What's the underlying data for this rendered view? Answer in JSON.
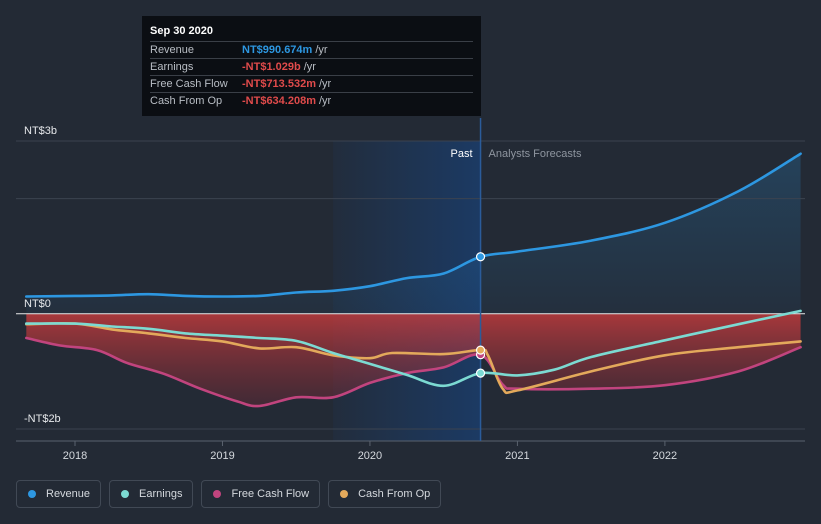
{
  "colors": {
    "revenue": "#2d97e1",
    "earnings": "#7cdad2",
    "fcf": "#c1447e",
    "cfo": "#e3a95b",
    "negative": "#e04b4b",
    "background": "#232a35"
  },
  "tooltip": {
    "date": "Sep 30 2020",
    "rows": [
      {
        "label": "Revenue",
        "value": "NT$990.674m",
        "unit": "/yr",
        "color": "#2d97e1"
      },
      {
        "label": "Earnings",
        "value": "-NT$1.029b",
        "unit": "/yr",
        "color": "#e04b4b"
      },
      {
        "label": "Free Cash Flow",
        "value": "-NT$713.532m",
        "unit": "/yr",
        "color": "#e04b4b"
      },
      {
        "label": "Cash From Op",
        "value": "-NT$634.208m",
        "unit": "/yr",
        "color": "#e04b4b"
      }
    ]
  },
  "legend": [
    {
      "label": "Revenue",
      "color": "#2d97e1"
    },
    {
      "label": "Earnings",
      "color": "#7cdad2"
    },
    {
      "label": "Free Cash Flow",
      "color": "#c1447e"
    },
    {
      "label": "Cash From Op",
      "color": "#e3a95b"
    }
  ],
  "chart_data": {
    "type": "line",
    "title": "",
    "xlabel": "",
    "ylabel": "",
    "ylim": [
      -2,
      3
    ],
    "xlim": [
      2017.6,
      2022.95
    ],
    "y_ticks": [
      {
        "value": 3,
        "label": "NT$3b"
      },
      {
        "value": 0,
        "label": "NT$0"
      },
      {
        "value": -2,
        "label": "-NT$2b"
      }
    ],
    "x_ticks": [
      {
        "value": 2018,
        "label": "2018"
      },
      {
        "value": 2019,
        "label": "2019"
      },
      {
        "value": 2020,
        "label": "2020"
      },
      {
        "value": 2021,
        "label": "2021"
      },
      {
        "value": 2022,
        "label": "2022"
      }
    ],
    "past_label": "Past",
    "forecast_label": "Analysts Forecasts",
    "divider_x": 2020.75,
    "past_band_start": 2019.75,
    "series": [
      {
        "name": "Revenue",
        "key": "revenue",
        "points": [
          [
            2017.67,
            0.3
          ],
          [
            2018.0,
            0.31
          ],
          [
            2018.25,
            0.32
          ],
          [
            2018.5,
            0.34
          ],
          [
            2018.75,
            0.31
          ],
          [
            2019.0,
            0.3
          ],
          [
            2019.25,
            0.31
          ],
          [
            2019.5,
            0.37
          ],
          [
            2019.75,
            0.4
          ],
          [
            2020.0,
            0.48
          ],
          [
            2020.25,
            0.62
          ],
          [
            2020.5,
            0.7
          ],
          [
            2020.75,
            0.99
          ],
          [
            2021.0,
            1.08
          ],
          [
            2021.5,
            1.27
          ],
          [
            2022.0,
            1.58
          ],
          [
            2022.5,
            2.13
          ],
          [
            2022.92,
            2.78
          ]
        ]
      },
      {
        "name": "Earnings",
        "key": "earnings",
        "points": [
          [
            2017.67,
            -0.17
          ],
          [
            2018.0,
            -0.17
          ],
          [
            2018.25,
            -0.22
          ],
          [
            2018.5,
            -0.26
          ],
          [
            2018.75,
            -0.34
          ],
          [
            2019.0,
            -0.38
          ],
          [
            2019.25,
            -0.42
          ],
          [
            2019.5,
            -0.47
          ],
          [
            2019.75,
            -0.68
          ],
          [
            2020.0,
            -0.87
          ],
          [
            2020.25,
            -1.06
          ],
          [
            2020.5,
            -1.25
          ],
          [
            2020.75,
            -1.03
          ],
          [
            2021.0,
            -1.07
          ],
          [
            2021.25,
            -0.97
          ],
          [
            2021.5,
            -0.75
          ],
          [
            2022.0,
            -0.46
          ],
          [
            2022.5,
            -0.18
          ],
          [
            2022.92,
            0.05
          ]
        ]
      },
      {
        "name": "Free Cash Flow",
        "key": "fcf",
        "points": [
          [
            2017.67,
            -0.42
          ],
          [
            2017.9,
            -0.55
          ],
          [
            2018.15,
            -0.63
          ],
          [
            2018.35,
            -0.85
          ],
          [
            2018.6,
            -1.04
          ],
          [
            2018.85,
            -1.3
          ],
          [
            2019.1,
            -1.52
          ],
          [
            2019.25,
            -1.6
          ],
          [
            2019.5,
            -1.45
          ],
          [
            2019.75,
            -1.45
          ],
          [
            2020.0,
            -1.2
          ],
          [
            2020.25,
            -1.03
          ],
          [
            2020.5,
            -0.93
          ],
          [
            2020.75,
            -0.71
          ],
          [
            2020.9,
            -1.23
          ],
          [
            2021.0,
            -1.3
          ],
          [
            2021.5,
            -1.3
          ],
          [
            2022.0,
            -1.24
          ],
          [
            2022.5,
            -1.0
          ],
          [
            2022.92,
            -0.58
          ]
        ]
      },
      {
        "name": "Cash From Op",
        "key": "cfo",
        "points": [
          [
            2017.67,
            -0.18
          ],
          [
            2018.0,
            -0.17
          ],
          [
            2018.25,
            -0.27
          ],
          [
            2018.5,
            -0.34
          ],
          [
            2018.75,
            -0.42
          ],
          [
            2019.0,
            -0.48
          ],
          [
            2019.25,
            -0.6
          ],
          [
            2019.5,
            -0.58
          ],
          [
            2019.75,
            -0.72
          ],
          [
            2020.0,
            -0.77
          ],
          [
            2020.15,
            -0.68
          ],
          [
            2020.5,
            -0.7
          ],
          [
            2020.75,
            -0.63
          ],
          [
            2020.8,
            -0.72
          ],
          [
            2020.9,
            -1.3
          ],
          [
            2021.0,
            -1.33
          ],
          [
            2021.5,
            -1.0
          ],
          [
            2022.0,
            -0.72
          ],
          [
            2022.5,
            -0.58
          ],
          [
            2022.92,
            -0.48
          ]
        ]
      }
    ]
  }
}
